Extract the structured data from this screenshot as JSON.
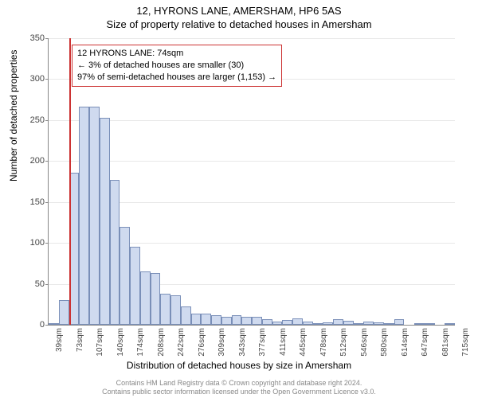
{
  "title_main": "12, HYRONS LANE, AMERSHAM, HP6 5AS",
  "title_sub": "Size of property relative to detached houses in Amersham",
  "ylabel": "Number of detached properties",
  "xlabel": "Distribution of detached houses by size in Amersham",
  "footer_line1": "Contains HM Land Registry data © Crown copyright and database right 2024.",
  "footer_line2": "Contains public sector information licensed under the Open Government Licence v3.0.",
  "annotation": {
    "line1": "12 HYRONS LANE: 74sqm",
    "line2": "← 3% of detached houses are smaller (30)",
    "line3": "97% of semi-detached houses are larger (1,153) →"
  },
  "chart": {
    "type": "histogram",
    "ylim": [
      0,
      350
    ],
    "ytick_step": 50,
    "bar_fill": "#cfdaef",
    "bar_stroke": "#7a8fb8",
    "grid_color": "#e8e8e8",
    "background_color": "#ffffff",
    "marker_color": "#cc3333",
    "marker_x_value": 74,
    "annotation_border": "#c33",
    "title_fontsize": 13,
    "label_fontsize": 12,
    "tick_fontsize": 11,
    "x_start": 39,
    "x_bin_width": 16.9,
    "x_labels": [
      "39sqm",
      "73sqm",
      "107sqm",
      "140sqm",
      "174sqm",
      "208sqm",
      "242sqm",
      "276sqm",
      "309sqm",
      "343sqm",
      "377sqm",
      "411sqm",
      "445sqm",
      "478sqm",
      "512sqm",
      "546sqm",
      "580sqm",
      "614sqm",
      "647sqm",
      "681sqm",
      "715sqm"
    ],
    "values": [
      2,
      30,
      186,
      266,
      266,
      253,
      177,
      120,
      95,
      65,
      63,
      38,
      36,
      22,
      14,
      14,
      12,
      10,
      12,
      10,
      10,
      7,
      4,
      6,
      8,
      4,
      1,
      3,
      7,
      5,
      1,
      4,
      3,
      2,
      7,
      0,
      2,
      2,
      0,
      2
    ]
  }
}
